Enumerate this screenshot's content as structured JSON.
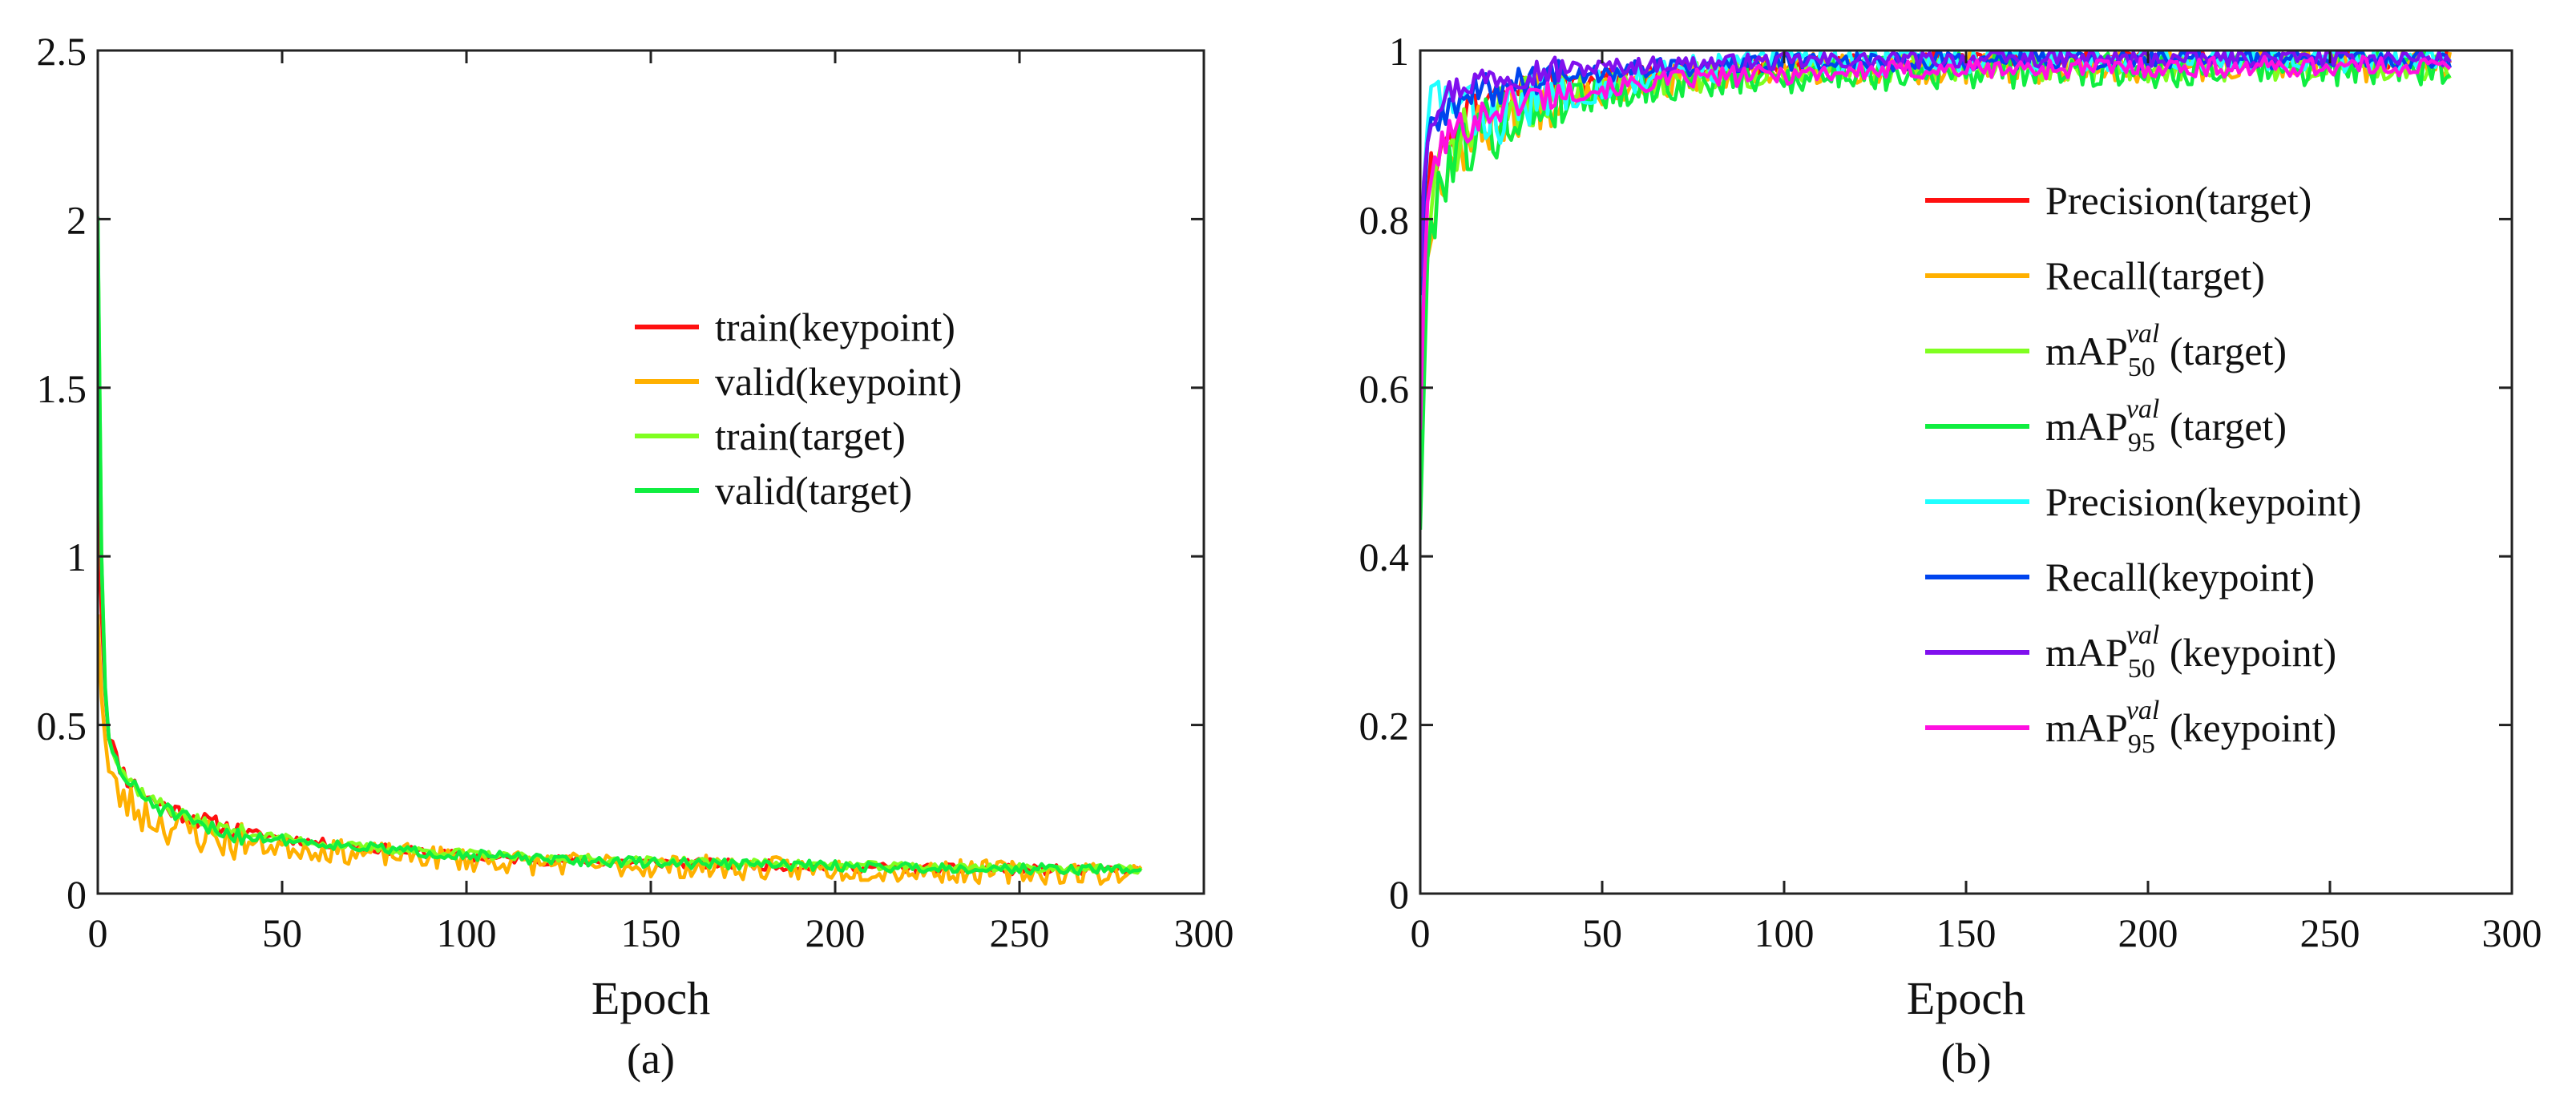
{
  "colors": {
    "red": "#ff1010",
    "orange": "#ffb000",
    "yellowgreen": "#80ff20",
    "green": "#10ee40",
    "cyan": "#20ffff",
    "blue": "#0044ee",
    "violet": "#8010ee",
    "magenta": "#ff10e0",
    "axis": "#222222"
  },
  "chart_data": [
    {
      "id": "a",
      "type": "line",
      "panel_label": "(a)",
      "xlabel": "Epoch",
      "ylabel": "",
      "xlim": [
        0,
        300
      ],
      "ylim": [
        0,
        2.5
      ],
      "xticks": [
        0,
        50,
        100,
        150,
        200,
        250,
        300
      ],
      "xtick_labels": [
        "0",
        "50",
        "100",
        "150",
        "200",
        "250",
        "300"
      ],
      "yticks": [
        0,
        0.5,
        1,
        1.5,
        2,
        2.5
      ],
      "ytick_labels": [
        "0",
        "0.5",
        "1",
        "1.5",
        "2",
        "2.5"
      ],
      "grid": false,
      "legend_position": "center-right",
      "x": [
        0,
        1,
        2,
        3,
        5,
        8,
        12,
        16,
        20,
        25,
        30,
        40,
        50,
        60,
        70,
        80,
        90,
        100,
        110,
        120,
        140,
        160,
        180,
        200,
        220,
        240,
        260,
        283
      ],
      "series": [
        {
          "name": "train(keypoint)",
          "color": "red",
          "seed": 11,
          "noise": 0.015,
          "values": [
            1.18,
            0.85,
            0.6,
            0.48,
            0.4,
            0.34,
            0.3,
            0.27,
            0.25,
            0.23,
            0.21,
            0.18,
            0.165,
            0.15,
            0.14,
            0.13,
            0.12,
            0.11,
            0.105,
            0.1,
            0.095,
            0.09,
            0.085,
            0.08,
            0.075,
            0.072,
            0.07,
            0.068
          ]
        },
        {
          "name": "valid(keypoint)",
          "color": "orange",
          "seed": 23,
          "noise": 0.035,
          "values": [
            0.86,
            0.6,
            0.45,
            0.36,
            0.3,
            0.27,
            0.24,
            0.22,
            0.2,
            0.19,
            0.17,
            0.15,
            0.14,
            0.13,
            0.12,
            0.115,
            0.11,
            0.1,
            0.095,
            0.09,
            0.085,
            0.08,
            0.075,
            0.072,
            0.068,
            0.065,
            0.063,
            0.06
          ]
        },
        {
          "name": "train(target)",
          "color": "yellowgreen",
          "seed": 37,
          "noise": 0.012,
          "values": [
            2.0,
            1.0,
            0.62,
            0.48,
            0.4,
            0.34,
            0.3,
            0.27,
            0.25,
            0.22,
            0.2,
            0.18,
            0.165,
            0.15,
            0.14,
            0.13,
            0.125,
            0.12,
            0.11,
            0.105,
            0.1,
            0.095,
            0.09,
            0.085,
            0.08,
            0.078,
            0.075,
            0.072
          ]
        },
        {
          "name": "valid(target)",
          "color": "green",
          "seed": 51,
          "noise": 0.015,
          "values": [
            2.02,
            0.98,
            0.6,
            0.46,
            0.39,
            0.33,
            0.29,
            0.26,
            0.24,
            0.21,
            0.19,
            0.17,
            0.16,
            0.15,
            0.14,
            0.13,
            0.12,
            0.115,
            0.11,
            0.1,
            0.095,
            0.09,
            0.086,
            0.082,
            0.078,
            0.075,
            0.073,
            0.07
          ]
        }
      ]
    },
    {
      "id": "b",
      "type": "line",
      "panel_label": "(b)",
      "xlabel": "Epoch",
      "ylabel": "",
      "xlim": [
        0,
        300
      ],
      "ylim": [
        0,
        1
      ],
      "xticks": [
        0,
        50,
        100,
        150,
        200,
        250,
        300
      ],
      "xtick_labels": [
        "0",
        "50",
        "100",
        "150",
        "200",
        "250",
        "300"
      ],
      "yticks": [
        0,
        0.2,
        0.4,
        0.6,
        0.8,
        1
      ],
      "ytick_labels": [
        "0",
        "0.2",
        "0.4",
        "0.6",
        "0.8",
        "1"
      ],
      "grid": false,
      "legend_position": "center-right",
      "x": [
        0,
        1,
        2,
        3,
        5,
        8,
        12,
        16,
        20,
        25,
        30,
        40,
        50,
        60,
        70,
        80,
        90,
        100,
        110,
        120,
        140,
        160,
        180,
        200,
        220,
        240,
        260,
        283
      ],
      "series": [
        {
          "name": "Precision(target)",
          "color": "red",
          "seed": 61,
          "noise": 0.012,
          "values": [
            0.6,
            0.74,
            0.82,
            0.86,
            0.88,
            0.9,
            0.92,
            0.93,
            0.94,
            0.95,
            0.955,
            0.96,
            0.965,
            0.97,
            0.975,
            0.978,
            0.98,
            0.982,
            0.984,
            0.985,
            0.986,
            0.987,
            0.988,
            0.988,
            0.989,
            0.989,
            0.99,
            0.99
          ]
        },
        {
          "name": "Recall(target)",
          "color": "orange",
          "seed": 67,
          "noise": 0.02,
          "values": [
            0.5,
            0.66,
            0.74,
            0.8,
            0.84,
            0.87,
            0.89,
            0.9,
            0.92,
            0.93,
            0.94,
            0.95,
            0.955,
            0.96,
            0.965,
            0.97,
            0.972,
            0.975,
            0.977,
            0.978,
            0.98,
            0.98,
            0.981,
            0.982,
            0.982,
            0.983,
            0.983,
            0.983
          ]
        },
        {
          "name": "mAP50val (target)",
          "name_parts": {
            "base": "mAP",
            "sub": "50",
            "sup": "val",
            "suffix": " (target)"
          },
          "color": "yellowgreen",
          "seed": 71,
          "noise": 0.018,
          "values": [
            0.48,
            0.66,
            0.76,
            0.82,
            0.86,
            0.88,
            0.9,
            0.91,
            0.92,
            0.93,
            0.94,
            0.95,
            0.955,
            0.96,
            0.965,
            0.97,
            0.973,
            0.975,
            0.977,
            0.978,
            0.98,
            0.98,
            0.981,
            0.981,
            0.982,
            0.982,
            0.982,
            0.982
          ]
        },
        {
          "name": "mAP95val (target)",
          "name_parts": {
            "base": "mAP",
            "sub": "95",
            "sup": "val",
            "suffix": " (target)"
          },
          "color": "green",
          "seed": 79,
          "noise": 0.022,
          "values": [
            0.45,
            0.6,
            0.72,
            0.79,
            0.84,
            0.87,
            0.89,
            0.9,
            0.91,
            0.92,
            0.93,
            0.945,
            0.95,
            0.955,
            0.96,
            0.965,
            0.968,
            0.97,
            0.972,
            0.974,
            0.976,
            0.977,
            0.978,
            0.978,
            0.979,
            0.979,
            0.98,
            0.98
          ]
        },
        {
          "name": "Precision(keypoint)",
          "color": "cyan",
          "seed": 83,
          "noise": 0.02,
          "values": [
            0.62,
            0.82,
            0.9,
            0.94,
            0.95,
            0.94,
            0.93,
            0.92,
            0.92,
            0.93,
            0.94,
            0.95,
            0.96,
            0.97,
            0.975,
            0.98,
            0.985,
            0.99,
            0.99,
            0.99,
            0.992,
            0.992,
            0.993,
            0.993,
            0.993,
            0.994,
            0.994,
            0.994
          ]
        },
        {
          "name": "Recall(keypoint)",
          "color": "blue",
          "seed": 89,
          "noise": 0.012,
          "values": [
            0.72,
            0.82,
            0.88,
            0.9,
            0.92,
            0.93,
            0.94,
            0.95,
            0.955,
            0.96,
            0.965,
            0.97,
            0.975,
            0.978,
            0.98,
            0.982,
            0.984,
            0.985,
            0.986,
            0.987,
            0.988,
            0.988,
            0.989,
            0.989,
            0.99,
            0.99,
            0.99,
            0.99
          ]
        },
        {
          "name": "mAP50val (keypoint)",
          "name_parts": {
            "base": "mAP",
            "sub": "50",
            "sup": "val",
            "suffix": " (keypoint)"
          },
          "color": "violet",
          "seed": 97,
          "noise": 0.01,
          "values": [
            0.74,
            0.86,
            0.9,
            0.92,
            0.94,
            0.95,
            0.96,
            0.965,
            0.97,
            0.972,
            0.975,
            0.978,
            0.98,
            0.982,
            0.984,
            0.985,
            0.986,
            0.987,
            0.988,
            0.988,
            0.989,
            0.99,
            0.99,
            0.99,
            0.99,
            0.991,
            0.991,
            0.991
          ]
        },
        {
          "name": "mAP95val (keypoint)",
          "name_parts": {
            "base": "mAP",
            "sub": "95",
            "sup": "val",
            "suffix": " (keypoint)"
          },
          "color": "magenta",
          "seed": 101,
          "noise": 0.012,
          "values": [
            0.56,
            0.72,
            0.8,
            0.85,
            0.88,
            0.9,
            0.91,
            0.92,
            0.93,
            0.94,
            0.945,
            0.95,
            0.955,
            0.96,
            0.965,
            0.968,
            0.97,
            0.972,
            0.974,
            0.975,
            0.977,
            0.978,
            0.979,
            0.98,
            0.98,
            0.981,
            0.981,
            0.981
          ]
        }
      ]
    }
  ]
}
